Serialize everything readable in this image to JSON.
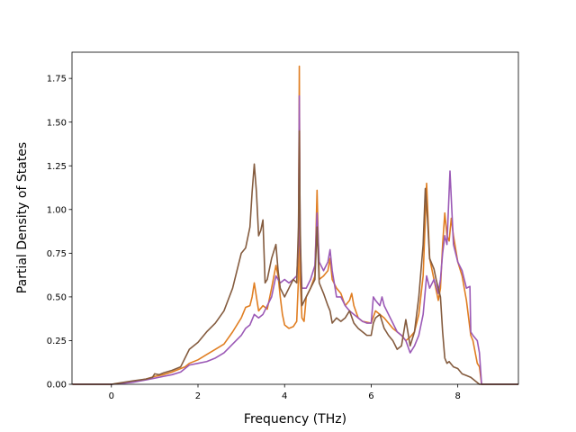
{
  "chart_data": {
    "type": "line",
    "title": "",
    "xlabel": "Frequency (THz)",
    "ylabel": "Partial Density of States",
    "xlim": [
      -0.91,
      9.4
    ],
    "ylim": [
      0.0,
      1.9
    ],
    "xticks": [
      0,
      2,
      4,
      6,
      8
    ],
    "xtick_labels": [
      "0",
      "2",
      "4",
      "6",
      "8"
    ],
    "yticks": [
      0.0,
      0.25,
      0.5,
      0.75,
      1.0,
      1.25,
      1.5,
      1.75
    ],
    "ytick_labels": [
      "0.00",
      "0.25",
      "0.50",
      "0.75",
      "1.00",
      "1.25",
      "1.50",
      "1.75"
    ],
    "grid": false,
    "legend": "none",
    "series": [
      {
        "color": "#e07e22",
        "points": [
          [
            -0.9,
            0
          ],
          [
            0,
            0
          ],
          [
            0.2,
            0.005
          ],
          [
            0.5,
            0.015
          ],
          [
            0.8,
            0.03
          ],
          [
            1.0,
            0.045
          ],
          [
            1.2,
            0.055
          ],
          [
            1.4,
            0.07
          ],
          [
            1.6,
            0.09
          ],
          [
            1.7,
            0.1
          ],
          [
            1.8,
            0.12
          ],
          [
            2.0,
            0.14
          ],
          [
            2.2,
            0.17
          ],
          [
            2.4,
            0.2
          ],
          [
            2.6,
            0.23
          ],
          [
            2.8,
            0.3
          ],
          [
            3.0,
            0.38
          ],
          [
            3.1,
            0.44
          ],
          [
            3.2,
            0.45
          ],
          [
            3.25,
            0.5
          ],
          [
            3.3,
            0.58
          ],
          [
            3.35,
            0.5
          ],
          [
            3.4,
            0.42
          ],
          [
            3.5,
            0.45
          ],
          [
            3.6,
            0.43
          ],
          [
            3.7,
            0.55
          ],
          [
            3.8,
            0.68
          ],
          [
            3.85,
            0.62
          ],
          [
            3.9,
            0.5
          ],
          [
            3.95,
            0.4
          ],
          [
            4.0,
            0.34
          ],
          [
            4.1,
            0.32
          ],
          [
            4.2,
            0.33
          ],
          [
            4.28,
            0.36
          ],
          [
            4.32,
            0.6
          ],
          [
            4.34,
            1.82
          ],
          [
            4.36,
            0.6
          ],
          [
            4.4,
            0.38
          ],
          [
            4.45,
            0.36
          ],
          [
            4.5,
            0.5
          ],
          [
            4.6,
            0.55
          ],
          [
            4.7,
            0.62
          ],
          [
            4.75,
            1.11
          ],
          [
            4.8,
            0.6
          ],
          [
            4.9,
            0.62
          ],
          [
            5.0,
            0.65
          ],
          [
            5.05,
            0.72
          ],
          [
            5.1,
            0.6
          ],
          [
            5.2,
            0.55
          ],
          [
            5.3,
            0.52
          ],
          [
            5.4,
            0.45
          ],
          [
            5.5,
            0.48
          ],
          [
            5.55,
            0.52
          ],
          [
            5.6,
            0.45
          ],
          [
            5.7,
            0.38
          ],
          [
            5.8,
            0.36
          ],
          [
            6.0,
            0.35
          ],
          [
            6.1,
            0.42
          ],
          [
            6.2,
            0.4
          ],
          [
            6.3,
            0.38
          ],
          [
            6.4,
            0.35
          ],
          [
            6.5,
            0.32
          ],
          [
            6.6,
            0.3
          ],
          [
            6.7,
            0.28
          ],
          [
            6.8,
            0.25
          ],
          [
            6.9,
            0.27
          ],
          [
            7.0,
            0.3
          ],
          [
            7.1,
            0.4
          ],
          [
            7.2,
            0.62
          ],
          [
            7.28,
            1.15
          ],
          [
            7.35,
            0.72
          ],
          [
            7.45,
            0.6
          ],
          [
            7.55,
            0.48
          ],
          [
            7.6,
            0.55
          ],
          [
            7.65,
            0.8
          ],
          [
            7.7,
            0.98
          ],
          [
            7.75,
            0.85
          ],
          [
            7.8,
            0.82
          ],
          [
            7.85,
            0.95
          ],
          [
            7.9,
            0.85
          ],
          [
            8.0,
            0.7
          ],
          [
            8.1,
            0.62
          ],
          [
            8.2,
            0.48
          ],
          [
            8.3,
            0.28
          ],
          [
            8.35,
            0.25
          ],
          [
            8.45,
            0.12
          ],
          [
            8.5,
            0.1
          ],
          [
            8.55,
            0.0
          ],
          [
            9.4,
            0
          ]
        ]
      },
      {
        "color": "#9b59b6",
        "points": [
          [
            -0.9,
            0
          ],
          [
            0,
            0
          ],
          [
            0.2,
            0.004
          ],
          [
            0.5,
            0.012
          ],
          [
            0.8,
            0.025
          ],
          [
            1.0,
            0.035
          ],
          [
            1.2,
            0.045
          ],
          [
            1.4,
            0.055
          ],
          [
            1.6,
            0.07
          ],
          [
            1.7,
            0.09
          ],
          [
            1.8,
            0.11
          ],
          [
            2.0,
            0.12
          ],
          [
            2.2,
            0.13
          ],
          [
            2.4,
            0.15
          ],
          [
            2.6,
            0.18
          ],
          [
            2.8,
            0.23
          ],
          [
            3.0,
            0.28
          ],
          [
            3.1,
            0.32
          ],
          [
            3.2,
            0.34
          ],
          [
            3.3,
            0.4
          ],
          [
            3.4,
            0.38
          ],
          [
            3.5,
            0.4
          ],
          [
            3.6,
            0.45
          ],
          [
            3.7,
            0.5
          ],
          [
            3.8,
            0.62
          ],
          [
            3.9,
            0.58
          ],
          [
            4.0,
            0.6
          ],
          [
            4.1,
            0.58
          ],
          [
            4.2,
            0.6
          ],
          [
            4.28,
            0.62
          ],
          [
            4.32,
            0.8
          ],
          [
            4.34,
            1.65
          ],
          [
            4.36,
            0.8
          ],
          [
            4.4,
            0.55
          ],
          [
            4.5,
            0.55
          ],
          [
            4.6,
            0.6
          ],
          [
            4.7,
            0.68
          ],
          [
            4.75,
            0.98
          ],
          [
            4.8,
            0.7
          ],
          [
            4.9,
            0.65
          ],
          [
            5.0,
            0.7
          ],
          [
            5.05,
            0.77
          ],
          [
            5.1,
            0.65
          ],
          [
            5.2,
            0.5
          ],
          [
            5.3,
            0.5
          ],
          [
            5.4,
            0.45
          ],
          [
            5.5,
            0.42
          ],
          [
            5.6,
            0.4
          ],
          [
            5.7,
            0.38
          ],
          [
            5.8,
            0.36
          ],
          [
            5.9,
            0.35
          ],
          [
            6.0,
            0.35
          ],
          [
            6.05,
            0.5
          ],
          [
            6.1,
            0.48
          ],
          [
            6.2,
            0.45
          ],
          [
            6.25,
            0.5
          ],
          [
            6.3,
            0.45
          ],
          [
            6.4,
            0.4
          ],
          [
            6.5,
            0.35
          ],
          [
            6.6,
            0.3
          ],
          [
            6.7,
            0.28
          ],
          [
            6.8,
            0.25
          ],
          [
            6.9,
            0.18
          ],
          [
            7.0,
            0.22
          ],
          [
            7.1,
            0.28
          ],
          [
            7.2,
            0.4
          ],
          [
            7.28,
            0.62
          ],
          [
            7.35,
            0.55
          ],
          [
            7.45,
            0.6
          ],
          [
            7.55,
            0.52
          ],
          [
            7.6,
            0.6
          ],
          [
            7.65,
            0.75
          ],
          [
            7.7,
            0.85
          ],
          [
            7.75,
            0.8
          ],
          [
            7.82,
            1.22
          ],
          [
            7.9,
            0.8
          ],
          [
            8.0,
            0.7
          ],
          [
            8.1,
            0.65
          ],
          [
            8.2,
            0.55
          ],
          [
            8.28,
            0.56
          ],
          [
            8.3,
            0.3
          ],
          [
            8.35,
            0.28
          ],
          [
            8.45,
            0.25
          ],
          [
            8.5,
            0.18
          ],
          [
            8.55,
            0.0
          ],
          [
            9.4,
            0
          ]
        ]
      },
      {
        "color": "#845b3e",
        "points": [
          [
            -0.9,
            0
          ],
          [
            0,
            0
          ],
          [
            0.2,
            0.008
          ],
          [
            0.5,
            0.02
          ],
          [
            0.8,
            0.03
          ],
          [
            0.95,
            0.04
          ],
          [
            1.0,
            0.06
          ],
          [
            1.1,
            0.055
          ],
          [
            1.2,
            0.065
          ],
          [
            1.4,
            0.08
          ],
          [
            1.6,
            0.1
          ],
          [
            1.7,
            0.15
          ],
          [
            1.8,
            0.2
          ],
          [
            2.0,
            0.24
          ],
          [
            2.2,
            0.3
          ],
          [
            2.4,
            0.35
          ],
          [
            2.6,
            0.42
          ],
          [
            2.8,
            0.55
          ],
          [
            3.0,
            0.75
          ],
          [
            3.1,
            0.78
          ],
          [
            3.2,
            0.9
          ],
          [
            3.25,
            1.1
          ],
          [
            3.3,
            1.26
          ],
          [
            3.35,
            1.1
          ],
          [
            3.4,
            0.85
          ],
          [
            3.45,
            0.88
          ],
          [
            3.5,
            0.94
          ],
          [
            3.55,
            0.58
          ],
          [
            3.6,
            0.6
          ],
          [
            3.7,
            0.72
          ],
          [
            3.8,
            0.8
          ],
          [
            3.85,
            0.65
          ],
          [
            3.9,
            0.55
          ],
          [
            4.0,
            0.5
          ],
          [
            4.1,
            0.55
          ],
          [
            4.2,
            0.6
          ],
          [
            4.28,
            0.58
          ],
          [
            4.32,
            0.9
          ],
          [
            4.34,
            1.45
          ],
          [
            4.36,
            0.9
          ],
          [
            4.4,
            0.45
          ],
          [
            4.5,
            0.5
          ],
          [
            4.6,
            0.55
          ],
          [
            4.7,
            0.6
          ],
          [
            4.75,
            0.9
          ],
          [
            4.8,
            0.58
          ],
          [
            4.9,
            0.52
          ],
          [
            5.0,
            0.45
          ],
          [
            5.05,
            0.42
          ],
          [
            5.1,
            0.35
          ],
          [
            5.2,
            0.38
          ],
          [
            5.3,
            0.36
          ],
          [
            5.4,
            0.38
          ],
          [
            5.5,
            0.42
          ],
          [
            5.6,
            0.35
          ],
          [
            5.7,
            0.32
          ],
          [
            5.8,
            0.3
          ],
          [
            5.9,
            0.28
          ],
          [
            6.0,
            0.28
          ],
          [
            6.05,
            0.35
          ],
          [
            6.1,
            0.38
          ],
          [
            6.2,
            0.4
          ],
          [
            6.3,
            0.32
          ],
          [
            6.4,
            0.28
          ],
          [
            6.5,
            0.25
          ],
          [
            6.6,
            0.2
          ],
          [
            6.7,
            0.22
          ],
          [
            6.8,
            0.37
          ],
          [
            6.9,
            0.22
          ],
          [
            7.0,
            0.3
          ],
          [
            7.1,
            0.5
          ],
          [
            7.2,
            0.8
          ],
          [
            7.25,
            1.12
          ],
          [
            7.3,
            0.95
          ],
          [
            7.35,
            0.72
          ],
          [
            7.45,
            0.66
          ],
          [
            7.5,
            0.6
          ],
          [
            7.55,
            0.55
          ],
          [
            7.6,
            0.5
          ],
          [
            7.65,
            0.3
          ],
          [
            7.7,
            0.15
          ],
          [
            7.75,
            0.12
          ],
          [
            7.8,
            0.13
          ],
          [
            7.9,
            0.1
          ],
          [
            8.0,
            0.09
          ],
          [
            8.1,
            0.06
          ],
          [
            8.2,
            0.05
          ],
          [
            8.3,
            0.04
          ],
          [
            8.4,
            0.02
          ],
          [
            8.5,
            0.0
          ],
          [
            9.4,
            0
          ]
        ]
      }
    ]
  }
}
